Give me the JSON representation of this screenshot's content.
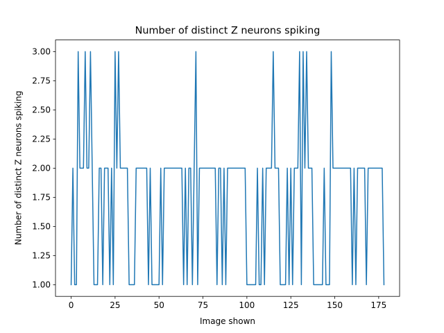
{
  "chart_data": {
    "type": "line",
    "title": "Number of distinct Z neurons spiking",
    "xlabel": "Image shown",
    "ylabel": "Number of distinct Z neurons spiking",
    "xlim": [
      -8.9,
      186.9
    ],
    "ylim": [
      0.9,
      3.1
    ],
    "xticks": [
      0,
      25,
      50,
      75,
      100,
      125,
      150,
      175
    ],
    "yticks": [
      "1.00",
      "1.25",
      "1.50",
      "1.75",
      "2.00",
      "2.25",
      "2.50",
      "2.75",
      "3.00"
    ],
    "grid": false,
    "line_color": "#1f77b4",
    "series": [
      {
        "x": [
          0,
          1,
          2,
          3,
          4,
          5,
          6,
          7,
          8,
          9,
          10,
          11,
          12,
          13,
          14,
          15,
          16,
          17,
          18,
          19,
          20,
          21,
          22,
          23,
          24,
          25,
          26,
          27,
          28,
          29,
          30,
          31,
          32,
          33,
          34,
          35,
          36,
          37,
          38,
          39,
          40,
          41,
          42,
          43,
          44,
          45,
          46,
          47,
          48,
          49,
          50,
          51,
          52,
          53,
          54,
          55,
          56,
          57,
          58,
          59,
          60,
          61,
          62,
          63,
          64,
          65,
          66,
          67,
          68,
          69,
          70,
          71,
          72,
          73,
          74,
          75,
          76,
          77,
          78,
          79,
          80,
          81,
          82,
          83,
          84,
          85,
          86,
          87,
          88,
          89,
          90,
          91,
          92,
          93,
          94,
          95,
          96,
          97,
          98,
          99,
          100,
          101,
          102,
          103,
          104,
          105,
          106,
          107,
          108,
          109,
          110,
          111,
          112,
          113,
          114,
          115,
          116,
          117,
          118,
          119,
          120,
          121,
          122,
          123,
          124,
          125,
          126,
          127,
          128,
          129,
          130,
          131,
          132,
          133,
          134,
          135,
          136,
          137,
          138,
          139,
          140,
          141,
          142,
          143,
          144,
          145,
          146,
          147,
          148,
          149,
          150,
          151,
          152,
          153,
          154,
          155,
          156,
          157,
          158,
          159,
          160,
          161,
          162,
          163,
          164,
          165,
          166,
          167,
          168,
          169,
          170,
          171,
          172,
          173,
          174,
          175,
          176,
          177,
          178
        ],
        "values": [
          1,
          2,
          1,
          1,
          3,
          2,
          2,
          2,
          3,
          2,
          2,
          3,
          2,
          1,
          1,
          1,
          2,
          2,
          1,
          2,
          2,
          2,
          1,
          2,
          1,
          3,
          2,
          3,
          2,
          2,
          2,
          2,
          2,
          1,
          1,
          1,
          1,
          2,
          2,
          2,
          2,
          2,
          2,
          2,
          1,
          2,
          1,
          1,
          1,
          1,
          1,
          2,
          1,
          2,
          2,
          2,
          2,
          2,
          2,
          2,
          2,
          2,
          2,
          2,
          1,
          2,
          1,
          2,
          2,
          1,
          2,
          3,
          1,
          2,
          2,
          2,
          2,
          2,
          2,
          2,
          2,
          2,
          2,
          1,
          2,
          2,
          1,
          2,
          1,
          2,
          2,
          2,
          2,
          2,
          2,
          2,
          2,
          2,
          2,
          2,
          1,
          1,
          1,
          1,
          1,
          1,
          2,
          1,
          1,
          2,
          1,
          2,
          2,
          2,
          2,
          3,
          2,
          2,
          2,
          1,
          1,
          1,
          1,
          2,
          1,
          2,
          1,
          2,
          2,
          2,
          3,
          1,
          3,
          2,
          3,
          2,
          2,
          2,
          1,
          1,
          1,
          1,
          1,
          1,
          2,
          1,
          1,
          1,
          3,
          2,
          2,
          2,
          2,
          2,
          2,
          2,
          2,
          2,
          2,
          2,
          1,
          2,
          1,
          2,
          2,
          2,
          2,
          2,
          1,
          2,
          2,
          2,
          2,
          2,
          2,
          2,
          2,
          2,
          1
        ]
      }
    ]
  }
}
